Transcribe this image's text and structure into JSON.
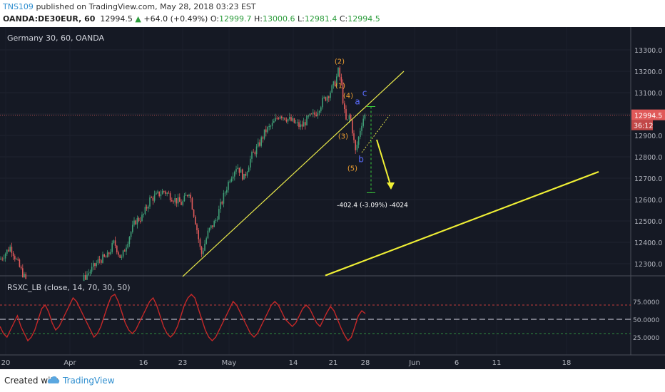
{
  "header": {
    "username": "TNS109",
    "published_text": "published on TradingView.com, May 28, 2018 03:23 EST",
    "symbol": "OANDA:DE30EUR, 60",
    "price": "12994.5",
    "change": "+64.0 (+0.49%)",
    "open_label": "O:",
    "open": "12999.7",
    "high_label": "H:",
    "high": "13000.6",
    "low_label": "L:",
    "low": "12981.4",
    "close_label": "C:",
    "close": "12994.5"
  },
  "footer": {
    "created_with": "Created with",
    "brand": "TradingView"
  },
  "chart_data": [
    {
      "type": "candlestick",
      "title": "Germany 30, 60, OANDA",
      "ylim": [
        12230,
        13360
      ],
      "y_ticks": [
        "13300.0",
        "13200.0",
        "13100.0",
        "13000.0",
        "12900.0",
        "12800.0",
        "12700.0",
        "12600.0",
        "12500.0",
        "12400.0",
        "12300.0"
      ],
      "x_ticks": [
        "20",
        "Apr",
        "16",
        "23",
        "May",
        "14",
        "21",
        "28",
        "Jun",
        "6",
        "11",
        "18"
      ],
      "current_price": "12994.5",
      "countdown": "36:12",
      "price_path": [
        [
          0,
          12320
        ],
        [
          15,
          12380
        ],
        [
          25,
          12300
        ],
        [
          35,
          12230
        ],
        [
          50,
          12160
        ],
        [
          70,
          12120
        ],
        [
          90,
          12180
        ],
        [
          110,
          12200
        ],
        [
          125,
          12260
        ],
        [
          140,
          12320
        ],
        [
          150,
          12330
        ],
        [
          160,
          12400
        ],
        [
          170,
          12320
        ],
        [
          180,
          12420
        ],
        [
          190,
          12500
        ],
        [
          200,
          12520
        ],
        [
          210,
          12600
        ],
        [
          220,
          12620
        ],
        [
          230,
          12640
        ],
        [
          245,
          12600
        ],
        [
          255,
          12580
        ],
        [
          265,
          12640
        ],
        [
          275,
          12480
        ],
        [
          282,
          12340
        ],
        [
          292,
          12450
        ],
        [
          302,
          12500
        ],
        [
          312,
          12600
        ],
        [
          322,
          12700
        ],
        [
          332,
          12760
        ],
        [
          342,
          12700
        ],
        [
          352,
          12800
        ],
        [
          362,
          12850
        ],
        [
          372,
          12920
        ],
        [
          382,
          12950
        ],
        [
          392,
          13000
        ],
        [
          402,
          12980
        ],
        [
          412,
          12960
        ],
        [
          422,
          12940
        ],
        [
          432,
          12980
        ],
        [
          442,
          13000
        ],
        [
          452,
          13060
        ],
        [
          462,
          13100
        ],
        [
          470,
          13150
        ],
        [
          474,
          13200
        ],
        [
          478,
          13150
        ],
        [
          482,
          13020
        ],
        [
          486,
          12950
        ],
        [
          490,
          13000
        ],
        [
          494,
          12920
        ],
        [
          498,
          12820
        ],
        [
          502,
          12880
        ],
        [
          506,
          12950
        ],
        [
          510,
          12990
        ],
        [
          513,
          12995
        ]
      ],
      "wave_labels": [
        {
          "text": "(2)",
          "x": 476,
          "y": 13235,
          "color": "#f0a030"
        },
        {
          "text": "(4)",
          "x": 488,
          "y": 13075,
          "color": "#f0a030"
        },
        {
          "text": "(1)",
          "x": 477,
          "y": 13122,
          "color": "#f0a030"
        },
        {
          "text": "(3)",
          "x": 481,
          "y": 12885,
          "color": "#f0a030"
        },
        {
          "text": "(5)",
          "x": 494,
          "y": 12735,
          "color": "#f0a030"
        },
        {
          "text": "a",
          "x": 501,
          "y": 13045,
          "color": "#5a6cff"
        },
        {
          "text": "b",
          "x": 506,
          "y": 12775,
          "color": "#5a6cff"
        },
        {
          "text": "c",
          "x": 511,
          "y": 13085,
          "color": "#5a6cff"
        }
      ],
      "trendlines": [
        {
          "from": [
            256,
            12240
          ],
          "to": [
            566,
            13200
          ],
          "color": "#e8e84a"
        },
        {
          "from": [
            456,
            12245
          ],
          "to": [
            839,
            12730
          ],
          "color": "#f0f035"
        }
      ],
      "measure": {
        "label": "-402.4 (-3.09%) -4024",
        "from": 13035,
        "to": 12632
      },
      "arrow": {
        "from": [
          528,
          12880
        ],
        "to": [
          548,
          12660
        ],
        "color": "#f0f035"
      },
      "colors": {
        "up": "#3f9e76",
        "down": "#e05a5a",
        "background": "#151924"
      }
    },
    {
      "type": "line",
      "title": "RSXC_LB (close, 14, 70, 30, 50)",
      "ylim": [
        10,
        95
      ],
      "y_ticks": [
        "75.0000",
        "50.0000",
        "25.0000"
      ],
      "levels": [
        {
          "value": 70,
          "color": "#c33a3a"
        },
        {
          "value": 50,
          "color": "#9a9aa6"
        },
        {
          "value": 30,
          "color": "#2f8f3f"
        }
      ],
      "series": [
        {
          "values": [
            40,
            30,
            25,
            35,
            45,
            55,
            40,
            30,
            20,
            25,
            35,
            50,
            65,
            70,
            60,
            45,
            35,
            40,
            50,
            60,
            70,
            80,
            75,
            65,
            55,
            45,
            35,
            25,
            30,
            40,
            55,
            70,
            82,
            85,
            75,
            60,
            45,
            35,
            30,
            35,
            45,
            55,
            65,
            75,
            80,
            70,
            55,
            40,
            30,
            25,
            30,
            40,
            55,
            70,
            80,
            85,
            80,
            65,
            50,
            35,
            25,
            20,
            25,
            35,
            45,
            55,
            65,
            75,
            70,
            60,
            50,
            40,
            30,
            25,
            30,
            40,
            50,
            60,
            70,
            75,
            70,
            60,
            50,
            45,
            40,
            45,
            55,
            65,
            70,
            65,
            55,
            45,
            40,
            50,
            60,
            68,
            62,
            50,
            38,
            28,
            20,
            25,
            40,
            55,
            62,
            58
          ],
          "color": "#c62828"
        }
      ]
    }
  ]
}
